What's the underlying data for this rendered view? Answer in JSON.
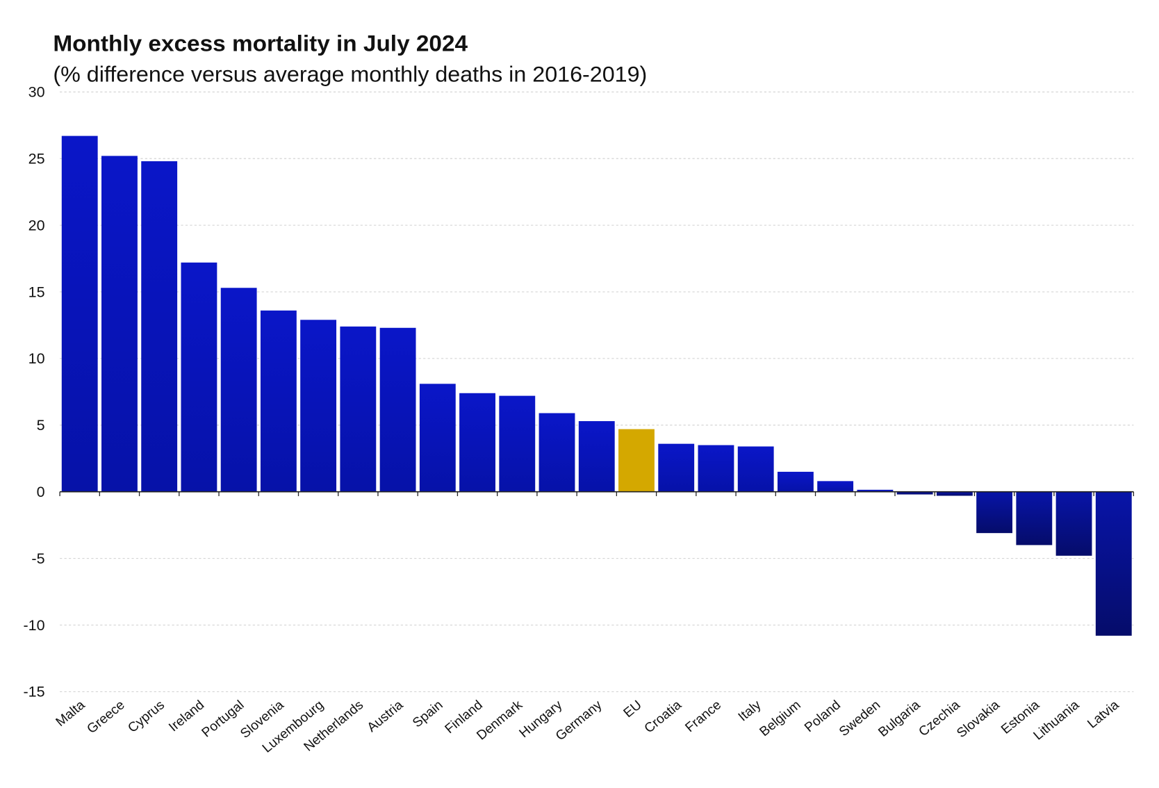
{
  "chart_data": {
    "type": "bar",
    "title": "Monthly excess mortality in July 2024",
    "subtitle": "(% difference versus average monthly deaths in 2016-2019)",
    "xlabel": "",
    "ylabel": "",
    "ylim": [
      -15,
      30
    ],
    "yticks": [
      30,
      25,
      20,
      15,
      10,
      5,
      0,
      -5,
      -10,
      -15
    ],
    "grid": true,
    "categories": [
      "Malta",
      "Greece",
      "Cyprus",
      "Ireland",
      "Portugal",
      "Slovenia",
      "Luxembourg",
      "Netherlands",
      "Austria",
      "Spain",
      "Finland",
      "Denmark",
      "Hungary",
      "Germany",
      "EU",
      "Croatia",
      "France",
      "Italy",
      "Belgium",
      "Poland",
      "Sweden",
      "Bulgaria",
      "Czechia",
      "Slovakia",
      "Estonia",
      "Lithuania",
      "Latvia"
    ],
    "values": [
      26.7,
      25.2,
      24.8,
      17.2,
      15.3,
      13.6,
      12.9,
      12.4,
      12.3,
      8.1,
      7.4,
      7.2,
      5.9,
      5.3,
      4.7,
      3.6,
      3.5,
      3.4,
      1.5,
      0.8,
      0.15,
      -0.2,
      -0.3,
      -3.1,
      -4.0,
      -4.8,
      -10.8
    ],
    "highlight": "EU",
    "colors": {
      "bar": "#0a14c4",
      "bar_dark": "#050f80",
      "highlight": "#d4a800",
      "grid": "#cfcfcf"
    }
  }
}
